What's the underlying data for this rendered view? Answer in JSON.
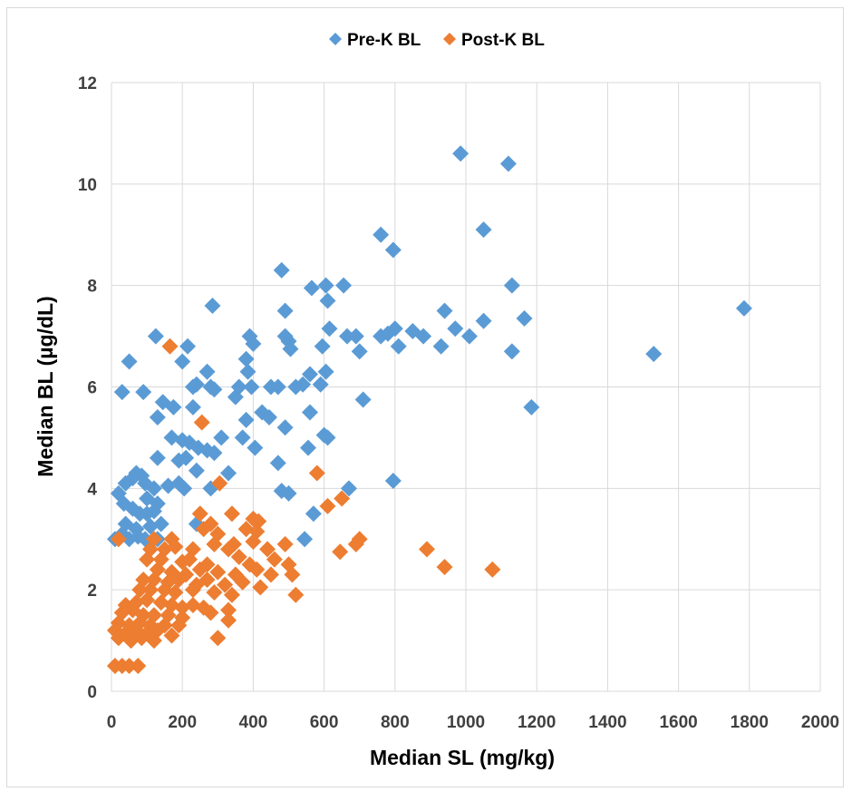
{
  "chart_data": {
    "type": "scatter",
    "title": "",
    "xlabel": "Median SL (mg/kg)",
    "ylabel": "Median BL (µg/dL)",
    "xlim": [
      0,
      2000
    ],
    "ylim": [
      0,
      12
    ],
    "x_ticks": [
      "0",
      "200",
      "400",
      "600",
      "800",
      "1000",
      "1200",
      "1400",
      "1600",
      "1800",
      "2000"
    ],
    "y_ticks": [
      "0",
      "2",
      "4",
      "6",
      "8",
      "10",
      "12"
    ],
    "grid": "both",
    "legend_position": "top",
    "marker": "diamond",
    "series": [
      {
        "name": "Pre-K BL",
        "color": "#5B9BD5",
        "points": [
          [
            985,
            10.6
          ],
          [
            1120,
            10.4
          ],
          [
            1050,
            9.1
          ],
          [
            760,
            9.0
          ],
          [
            795,
            8.7
          ],
          [
            480,
            8.3
          ],
          [
            565,
            7.95
          ],
          [
            605,
            8.0
          ],
          [
            655,
            8.0
          ],
          [
            1130,
            8.0
          ],
          [
            1785,
            7.55
          ],
          [
            285,
            7.6
          ],
          [
            610,
            7.7
          ],
          [
            490,
            7.5
          ],
          [
            940,
            7.5
          ],
          [
            1165,
            7.35
          ],
          [
            1050,
            7.3
          ],
          [
            125,
            7.0
          ],
          [
            390,
            7.0
          ],
          [
            490,
            7.0
          ],
          [
            500,
            6.9
          ],
          [
            615,
            7.15
          ],
          [
            665,
            7.0
          ],
          [
            690,
            7.0
          ],
          [
            760,
            7.0
          ],
          [
            780,
            7.05
          ],
          [
            800,
            7.15
          ],
          [
            850,
            7.1
          ],
          [
            880,
            7.0
          ],
          [
            970,
            7.15
          ],
          [
            1010,
            7.0
          ],
          [
            215,
            6.8
          ],
          [
            400,
            6.85
          ],
          [
            505,
            6.75
          ],
          [
            595,
            6.8
          ],
          [
            700,
            6.7
          ],
          [
            810,
            6.8
          ],
          [
            930,
            6.8
          ],
          [
            1130,
            6.7
          ],
          [
            1530,
            6.65
          ],
          [
            380,
            6.55
          ],
          [
            200,
            6.5
          ],
          [
            50,
            6.5
          ],
          [
            270,
            6.3
          ],
          [
            385,
            6.3
          ],
          [
            560,
            6.25
          ],
          [
            605,
            6.3
          ],
          [
            240,
            6.05
          ],
          [
            230,
            6.0
          ],
          [
            280,
            6.0
          ],
          [
            360,
            6.0
          ],
          [
            395,
            6.0
          ],
          [
            450,
            6.0
          ],
          [
            470,
            6.0
          ],
          [
            520,
            6.0
          ],
          [
            540,
            6.05
          ],
          [
            590,
            6.05
          ],
          [
            30,
            5.9
          ],
          [
            90,
            5.9
          ],
          [
            290,
            5.95
          ],
          [
            1185,
            5.6
          ],
          [
            350,
            5.8
          ],
          [
            710,
            5.75
          ],
          [
            145,
            5.7
          ],
          [
            175,
            5.6
          ],
          [
            230,
            5.6
          ],
          [
            425,
            5.5
          ],
          [
            445,
            5.4
          ],
          [
            560,
            5.5
          ],
          [
            380,
            5.35
          ],
          [
            130,
            5.4
          ],
          [
            600,
            5.05
          ],
          [
            610,
            5.0
          ],
          [
            490,
            5.2
          ],
          [
            170,
            5.0
          ],
          [
            200,
            4.95
          ],
          [
            220,
            4.9
          ],
          [
            245,
            4.8
          ],
          [
            270,
            4.75
          ],
          [
            290,
            4.7
          ],
          [
            310,
            5.0
          ],
          [
            370,
            5.0
          ],
          [
            405,
            4.8
          ],
          [
            555,
            4.8
          ],
          [
            130,
            4.6
          ],
          [
            190,
            4.55
          ],
          [
            210,
            4.6
          ],
          [
            470,
            4.5
          ],
          [
            240,
            4.35
          ],
          [
            330,
            4.3
          ],
          [
            20,
            3.9
          ],
          [
            40,
            4.1
          ],
          [
            60,
            4.2
          ],
          [
            70,
            4.3
          ],
          [
            85,
            4.25
          ],
          [
            95,
            4.1
          ],
          [
            120,
            4.0
          ],
          [
            160,
            4.05
          ],
          [
            190,
            4.1
          ],
          [
            205,
            4.0
          ],
          [
            280,
            4.0
          ],
          [
            670,
            4.0
          ],
          [
            480,
            3.95
          ],
          [
            500,
            3.9
          ],
          [
            795,
            4.15
          ],
          [
            100,
            3.8
          ],
          [
            130,
            3.7
          ],
          [
            35,
            3.7
          ],
          [
            60,
            3.6
          ],
          [
            80,
            3.5
          ],
          [
            100,
            3.5
          ],
          [
            120,
            3.55
          ],
          [
            140,
            3.3
          ],
          [
            40,
            3.3
          ],
          [
            70,
            3.2
          ],
          [
            110,
            3.25
          ],
          [
            240,
            3.3
          ],
          [
            570,
            3.5
          ],
          [
            10,
            3.0
          ],
          [
            30,
            3.1
          ],
          [
            50,
            3.0
          ],
          [
            75,
            3.05
          ],
          [
            95,
            3.0
          ],
          [
            130,
            3.0
          ],
          [
            545,
            3.0
          ]
        ]
      },
      {
        "name": "Post-K BL",
        "color": "#ED7D31",
        "points": [
          [
            165,
            6.8
          ],
          [
            255,
            5.3
          ],
          [
            580,
            4.3
          ],
          [
            305,
            4.1
          ],
          [
            650,
            3.8
          ],
          [
            610,
            3.65
          ],
          [
            250,
            3.5
          ],
          [
            340,
            3.5
          ],
          [
            400,
            3.4
          ],
          [
            415,
            3.35
          ],
          [
            280,
            3.3
          ],
          [
            260,
            3.2
          ],
          [
            380,
            3.2
          ],
          [
            410,
            3.15
          ],
          [
            300,
            3.1
          ],
          [
            20,
            3.0
          ],
          [
            120,
            3.0
          ],
          [
            170,
            3.0
          ],
          [
            290,
            2.9
          ],
          [
            345,
            2.9
          ],
          [
            400,
            2.95
          ],
          [
            490,
            2.9
          ],
          [
            700,
            3.0
          ],
          [
            690,
            2.9
          ],
          [
            110,
            2.8
          ],
          [
            150,
            2.8
          ],
          [
            180,
            2.85
          ],
          [
            230,
            2.8
          ],
          [
            330,
            2.8
          ],
          [
            440,
            2.8
          ],
          [
            645,
            2.75
          ],
          [
            890,
            2.8
          ],
          [
            940,
            2.45
          ],
          [
            1075,
            2.4
          ],
          [
            100,
            2.6
          ],
          [
            140,
            2.6
          ],
          [
            200,
            2.55
          ],
          [
            220,
            2.6
          ],
          [
            270,
            2.5
          ],
          [
            360,
            2.65
          ],
          [
            390,
            2.5
          ],
          [
            460,
            2.6
          ],
          [
            500,
            2.5
          ],
          [
            130,
            2.4
          ],
          [
            170,
            2.35
          ],
          [
            210,
            2.3
          ],
          [
            250,
            2.4
          ],
          [
            300,
            2.35
          ],
          [
            350,
            2.3
          ],
          [
            410,
            2.4
          ],
          [
            450,
            2.3
          ],
          [
            510,
            2.3
          ],
          [
            90,
            2.2
          ],
          [
            120,
            2.2
          ],
          [
            160,
            2.15
          ],
          [
            190,
            2.2
          ],
          [
            240,
            2.1
          ],
          [
            270,
            2.2
          ],
          [
            320,
            2.1
          ],
          [
            370,
            2.15
          ],
          [
            420,
            2.05
          ],
          [
            80,
            2.0
          ],
          [
            110,
            2.0
          ],
          [
            150,
            2.0
          ],
          [
            180,
            1.95
          ],
          [
            230,
            2.0
          ],
          [
            290,
            1.95
          ],
          [
            340,
            1.9
          ],
          [
            520,
            1.9
          ],
          [
            40,
            1.7
          ],
          [
            70,
            1.75
          ],
          [
            100,
            1.8
          ],
          [
            140,
            1.75
          ],
          [
            170,
            1.7
          ],
          [
            200,
            1.65
          ],
          [
            230,
            1.7
          ],
          [
            260,
            1.65
          ],
          [
            330,
            1.6
          ],
          [
            30,
            1.55
          ],
          [
            60,
            1.6
          ],
          [
            90,
            1.5
          ],
          [
            120,
            1.5
          ],
          [
            160,
            1.5
          ],
          [
            200,
            1.45
          ],
          [
            280,
            1.55
          ],
          [
            330,
            1.4
          ],
          [
            20,
            1.35
          ],
          [
            50,
            1.3
          ],
          [
            80,
            1.35
          ],
          [
            110,
            1.3
          ],
          [
            150,
            1.3
          ],
          [
            190,
            1.3
          ],
          [
            10,
            1.2
          ],
          [
            40,
            1.15
          ],
          [
            70,
            1.2
          ],
          [
            100,
            1.15
          ],
          [
            130,
            1.2
          ],
          [
            170,
            1.1
          ],
          [
            20,
            1.05
          ],
          [
            55,
            1.0
          ],
          [
            85,
            1.05
          ],
          [
            120,
            1.0
          ],
          [
            300,
            1.05
          ],
          [
            10,
            0.5
          ],
          [
            30,
            0.5
          ],
          [
            50,
            0.5
          ],
          [
            75,
            0.5
          ]
        ]
      }
    ]
  }
}
